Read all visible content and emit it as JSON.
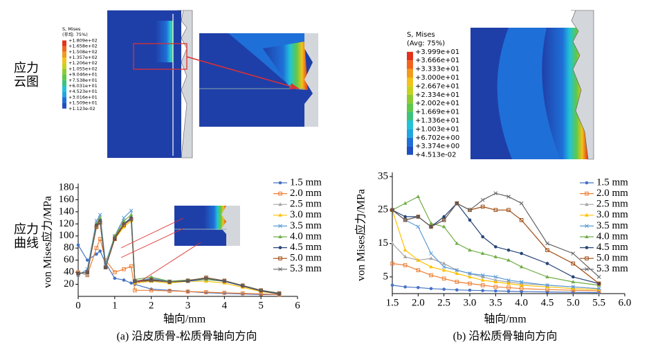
{
  "row_labels": [
    [
      "应力",
      "云图"
    ],
    [
      "应力",
      "曲线"
    ]
  ],
  "contour_legends": [
    {
      "title": "S, Mises",
      "subtitle": "(平均: 75%)",
      "levels": [
        "+1.809e+02",
        "+1.658e+02",
        "+1.508e+02",
        "+1.357e+02",
        "+1.206e+02",
        "+1.055e+02",
        "+9.046e+01",
        "+7.538e+01",
        "+6.031e+01",
        "+4.523e+01",
        "+3.016e+01",
        "+1.509e+01",
        "+1.123e-02"
      ]
    },
    {
      "title": "S, Mises",
      "subtitle": "(Avg: 75%)",
      "levels": [
        "+3.999e+01",
        "+3.666e+01",
        "+3.333e+01",
        "+3.000e+01",
        "+2.667e+01",
        "+2.334e+01",
        "+2.002e+01",
        "+1.669e+01",
        "+1.336e+01",
        "+1.003e+01",
        "+6.702e+00",
        "+3.374e+00",
        "+4.513e-02"
      ]
    }
  ],
  "chart_data": [
    {
      "type": "line",
      "caption": "(a) 沿皮质骨-松质骨轴向方向",
      "x_label": "轴向/mm",
      "y_label": "von Mises应力/MPa",
      "x": [
        0,
        0.25,
        0.5,
        0.6,
        0.75,
        1.0,
        1.25,
        1.45,
        1.55,
        2,
        2.5,
        3,
        3.5,
        4,
        4.5,
        5,
        5.5
      ],
      "xlim": [
        0,
        6
      ],
      "xticks": [
        0,
        1,
        2,
        3,
        4,
        5,
        6
      ],
      "ylim": [
        0,
        180
      ],
      "yticks": [
        20,
        40,
        60,
        80,
        100,
        120,
        140,
        160,
        180
      ],
      "series": [
        {
          "name": "1.5 mm",
          "color": "#4472c4",
          "marker": "circle",
          "values": [
            85,
            60,
            70,
            75,
            55,
            30,
            27,
            22,
            20,
            12,
            10,
            8,
            6,
            5,
            4,
            3,
            3
          ]
        },
        {
          "name": "2.0 mm",
          "color": "#ed7d31",
          "marker": "square",
          "values": [
            40,
            35,
            80,
            95,
            60,
            40,
            45,
            50,
            10,
            10,
            9,
            8,
            7,
            6,
            5,
            4,
            3
          ]
        },
        {
          "name": "2.5 mm",
          "color": "#a5a5a5",
          "marker": "triangle",
          "values": [
            40,
            35,
            120,
            128,
            50,
            100,
            120,
            130,
            25,
            28,
            25,
            27,
            30,
            25,
            18,
            10,
            5
          ]
        },
        {
          "name": "3.0 mm",
          "color": "#ffc000",
          "marker": "triangle",
          "values": [
            38,
            40,
            115,
            125,
            50,
            95,
            115,
            125,
            22,
            25,
            22,
            25,
            25,
            22,
            15,
            8,
            4
          ]
        },
        {
          "name": "3.5 mm",
          "color": "#5b9bd5",
          "marker": "x",
          "values": [
            35,
            45,
            125,
            135,
            55,
            100,
            130,
            142,
            25,
            30,
            25,
            25,
            28,
            25,
            18,
            10,
            5
          ]
        },
        {
          "name": "4.0 mm",
          "color": "#70ad47",
          "marker": "triangle",
          "values": [
            38,
            40,
            120,
            130,
            50,
            100,
            125,
            135,
            28,
            32,
            25,
            27,
            28,
            25,
            18,
            10,
            5
          ]
        },
        {
          "name": "4.5 mm",
          "color": "#264478",
          "marker": "circle",
          "values": [
            38,
            40,
            118,
            125,
            48,
            95,
            120,
            130,
            25,
            28,
            24,
            25,
            30,
            25,
            17,
            9,
            4
          ]
        },
        {
          "name": "5.0 mm",
          "color": "#9e480e",
          "marker": "square",
          "values": [
            38,
            40,
            115,
            122,
            48,
            95,
            118,
            128,
            25,
            27,
            24,
            26,
            31,
            26,
            18,
            10,
            5
          ]
        },
        {
          "name": "5.3 mm",
          "color": "#636363",
          "marker": "x",
          "values": [
            38,
            40,
            118,
            125,
            48,
            98,
            120,
            128,
            24,
            26,
            24,
            26,
            30,
            26,
            18,
            10,
            5
          ]
        }
      ]
    },
    {
      "type": "line",
      "caption": "(b) 沿松质骨轴向方向",
      "x_label": "轴向/mm",
      "y_label": "von Mises应力/MPa",
      "x": [
        1.5,
        1.75,
        2.0,
        2.25,
        2.5,
        2.75,
        3.0,
        3.25,
        3.5,
        3.75,
        4.0,
        4.5,
        5.0,
        5.5
      ],
      "xlim": [
        1.5,
        6.0
      ],
      "xticks": [
        1.5,
        {
          "value": 2,
          "label": "2.0"
        },
        2.5,
        {
          "value": 3,
          "label": "3.0"
        },
        3.5,
        {
          "value": 4,
          "label": "4.0"
        },
        4.5,
        {
          "value": 5,
          "label": "5.0"
        },
        5.5,
        {
          "value": 6,
          "label": "6.0"
        }
      ],
      "ylim": [
        0,
        35
      ],
      "yticks": [
        5,
        15,
        25,
        35
      ],
      "series": [
        {
          "name": "1.5 mm",
          "color": "#4472c4",
          "marker": "circle",
          "values": [
            2.5,
            2,
            1.8,
            1.5,
            1.3,
            1.1,
            1,
            0.9,
            0.8,
            0.7,
            0.6,
            0.5,
            0.4,
            0.3
          ]
        },
        {
          "name": "2.0 mm",
          "color": "#ed7d31",
          "marker": "square",
          "values": [
            9,
            8.5,
            7,
            5.5,
            4.5,
            3.5,
            3,
            2.5,
            2,
            1.8,
            1.5,
            1.2,
            1,
            0.8
          ]
        },
        {
          "name": "2.5 mm",
          "color": "#a5a5a5",
          "marker": "triangle",
          "values": [
            15,
            11,
            10,
            10.5,
            9,
            7,
            6,
            5,
            4,
            3.5,
            3,
            2.5,
            2,
            1.5
          ]
        },
        {
          "name": "3.0 mm",
          "color": "#ffc000",
          "marker": "triangle",
          "values": [
            25,
            13,
            10,
            8,
            7,
            6,
            5,
            4,
            3.5,
            3,
            2.5,
            2,
            1.5,
            1.2
          ]
        },
        {
          "name": "3.5 mm",
          "color": "#5b9bd5",
          "marker": "x",
          "values": [
            25,
            22,
            20,
            12,
            8,
            7,
            6,
            5.5,
            5,
            4,
            3.5,
            2.5,
            2,
            1.5
          ]
        },
        {
          "name": "4.0 mm",
          "color": "#70ad47",
          "marker": "triangle",
          "values": [
            25,
            27,
            29,
            21,
            20,
            15,
            13,
            12,
            11,
            10,
            8,
            5,
            3.5,
            2.5
          ]
        },
        {
          "name": "4.5 mm",
          "color": "#264478",
          "marker": "circle",
          "values": [
            25,
            23,
            23,
            20,
            23,
            27,
            22,
            17,
            14,
            13,
            12,
            9,
            5,
            3
          ]
        },
        {
          "name": "5.0 mm",
          "color": "#9e480e",
          "marker": "square",
          "values": [
            25,
            22,
            23,
            20,
            22,
            27,
            25,
            26,
            25,
            25,
            22,
            13,
            9,
            3
          ]
        },
        {
          "name": "5.3 mm",
          "color": "#636363",
          "marker": "x",
          "values": [
            25,
            22,
            23,
            20,
            22,
            27,
            25,
            28,
            30,
            29,
            27,
            15,
            12,
            5
          ]
        }
      ]
    }
  ]
}
